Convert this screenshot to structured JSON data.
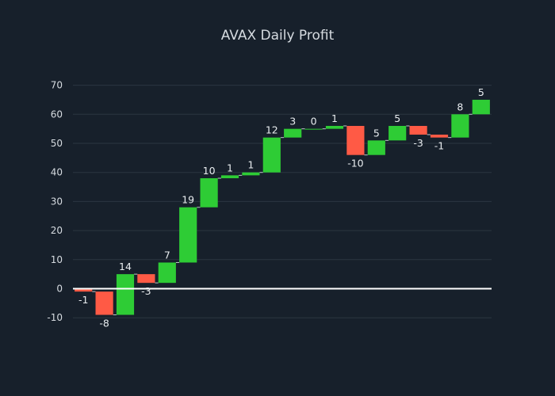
{
  "colors": {
    "background": "#17202b",
    "increasing": "#2ecc35",
    "decreasing": "#ff5a45",
    "grid": "#2b3641",
    "text": "#d6dbe0"
  },
  "chart_data": {
    "type": "bar",
    "subtype": "waterfall",
    "title": "AVAX Daily Profit",
    "xlabel": "",
    "ylabel": "",
    "ylim": [
      -14,
      72
    ],
    "yticks": [
      -10,
      0,
      10,
      20,
      30,
      40,
      50,
      60,
      70
    ],
    "grid": true,
    "legend": "none",
    "values": [
      -1,
      -8,
      14,
      -3,
      7,
      19,
      10,
      1,
      1,
      12,
      3,
      0,
      1,
      -10,
      5,
      5,
      -3,
      -1,
      8,
      5
    ],
    "labels": [
      "-1",
      "-8",
      "14",
      "-3",
      "7",
      "19",
      "10",
      "1",
      "1",
      "12",
      "3",
      "0",
      "1",
      "-10",
      "5",
      "5",
      "-3",
      "-1",
      "8",
      "5"
    ]
  }
}
